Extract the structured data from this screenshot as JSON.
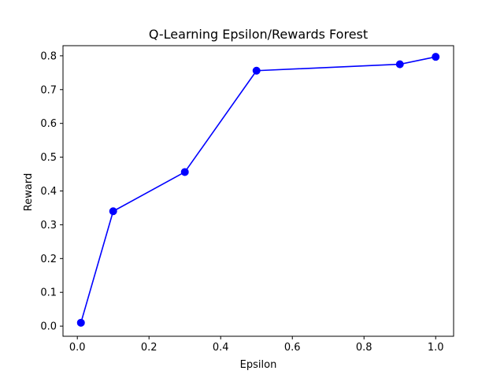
{
  "chart_data": {
    "type": "line",
    "title": "Q-Learning Epsilon/Rewards Forest",
    "xlabel": "Epsilon",
    "ylabel": "Reward",
    "xlim": [
      -0.04,
      1.05
    ],
    "ylim": [
      -0.03,
      0.83
    ],
    "xticks": [
      0.0,
      0.2,
      0.4,
      0.6,
      0.8,
      1.0
    ],
    "xtick_labels": [
      "0.0",
      "0.2",
      "0.4",
      "0.6",
      "0.8",
      "1.0"
    ],
    "yticks": [
      0.0,
      0.1,
      0.2,
      0.3,
      0.4,
      0.5,
      0.6,
      0.7,
      0.8
    ],
    "ytick_labels": [
      "0.0",
      "0.1",
      "0.2",
      "0.3",
      "0.4",
      "0.5",
      "0.6",
      "0.7",
      "0.8"
    ],
    "grid": false,
    "series": [
      {
        "color": "#0000ff",
        "marker": "circle",
        "x": [
          0.01,
          0.1,
          0.3,
          0.5,
          0.9,
          1.0
        ],
        "y": [
          0.01,
          0.34,
          0.456,
          0.756,
          0.775,
          0.797
        ]
      }
    ]
  }
}
